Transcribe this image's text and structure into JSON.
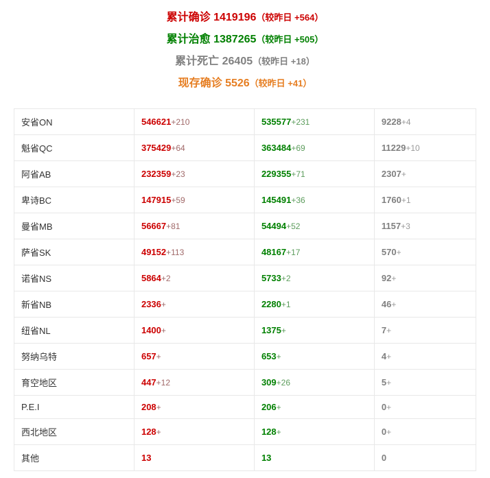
{
  "colors": {
    "confirmed": "#cc0000",
    "recovered": "#008000",
    "death": "#808080",
    "active": "#e67e22",
    "deltaConfirmed": "#a06868",
    "deltaRecovered": "#5c9c5c",
    "deltaDeath": "#999999",
    "border": "#e8e8e8",
    "text": "#333333"
  },
  "fonts": {
    "summary_main": 16,
    "summary_change": 13,
    "cell": 13,
    "delta": 12
  },
  "summary": [
    {
      "label": "累计确诊",
      "value": "1419196",
      "change_prefix": "（较昨日 ",
      "change": "+564",
      "change_suffix": "）",
      "colorKey": "confirmed"
    },
    {
      "label": "累计治愈",
      "value": "1387265",
      "change_prefix": "（较昨日 ",
      "change": "+505",
      "change_suffix": "）",
      "colorKey": "recovered"
    },
    {
      "label": "累计死亡",
      "value": "26405",
      "change_prefix": "（较昨日 ",
      "change": "+18",
      "change_suffix": "）",
      "colorKey": "death"
    },
    {
      "label": "现存确诊",
      "value": "5526",
      "change_prefix": "（较昨日 ",
      "change": "+41",
      "change_suffix": "）",
      "colorKey": "active"
    }
  ],
  "rows": [
    {
      "name": "安省ON",
      "confirmed": "546621",
      "dConfirmed": "+210",
      "recovered": "535577",
      "dRecovered": "+231",
      "death": "9228",
      "dDeath": "+4"
    },
    {
      "name": "魁省QC",
      "confirmed": "375429",
      "dConfirmed": "+64",
      "recovered": "363484",
      "dRecovered": "+69",
      "death": "11229",
      "dDeath": "+10"
    },
    {
      "name": "阿省AB",
      "confirmed": "232359",
      "dConfirmed": "+23",
      "recovered": "229355",
      "dRecovered": "+71",
      "death": "2307",
      "dDeath": "+"
    },
    {
      "name": "卑诗BC",
      "confirmed": "147915",
      "dConfirmed": "+59",
      "recovered": "145491",
      "dRecovered": "+36",
      "death": "1760",
      "dDeath": "+1"
    },
    {
      "name": "曼省MB",
      "confirmed": "56667",
      "dConfirmed": "+81",
      "recovered": "54494",
      "dRecovered": "+52",
      "death": "1157",
      "dDeath": "+3"
    },
    {
      "name": "萨省SK",
      "confirmed": "49152",
      "dConfirmed": "+113",
      "recovered": "48167",
      "dRecovered": "+17",
      "death": "570",
      "dDeath": "+"
    },
    {
      "name": "诺省NS",
      "confirmed": "5864",
      "dConfirmed": "+2",
      "recovered": "5733",
      "dRecovered": "+2",
      "death": "92",
      "dDeath": "+"
    },
    {
      "name": "新省NB",
      "confirmed": "2336",
      "dConfirmed": "+",
      "recovered": "2280",
      "dRecovered": "+1",
      "death": "46",
      "dDeath": "+"
    },
    {
      "name": "纽省NL",
      "confirmed": "1400",
      "dConfirmed": "+",
      "recovered": "1375",
      "dRecovered": "+",
      "death": "7",
      "dDeath": "+"
    },
    {
      "name": "努纳乌特",
      "confirmed": "657",
      "dConfirmed": "+",
      "recovered": "653",
      "dRecovered": "+",
      "death": "4",
      "dDeath": "+"
    },
    {
      "name": "育空地区",
      "confirmed": "447",
      "dConfirmed": "+12",
      "recovered": "309",
      "dRecovered": "+26",
      "death": "5",
      "dDeath": "+"
    },
    {
      "name": "P.E.I",
      "confirmed": "208",
      "dConfirmed": "+",
      "recovered": "206",
      "dRecovered": "+",
      "death": "0",
      "dDeath": "+"
    },
    {
      "name": "西北地区",
      "confirmed": "128",
      "dConfirmed": "+",
      "recovered": "128",
      "dRecovered": "+",
      "death": "0",
      "dDeath": "+"
    },
    {
      "name": "其他",
      "confirmed": "13",
      "dConfirmed": "",
      "recovered": "13",
      "dRecovered": "",
      "death": "0",
      "dDeath": ""
    }
  ]
}
